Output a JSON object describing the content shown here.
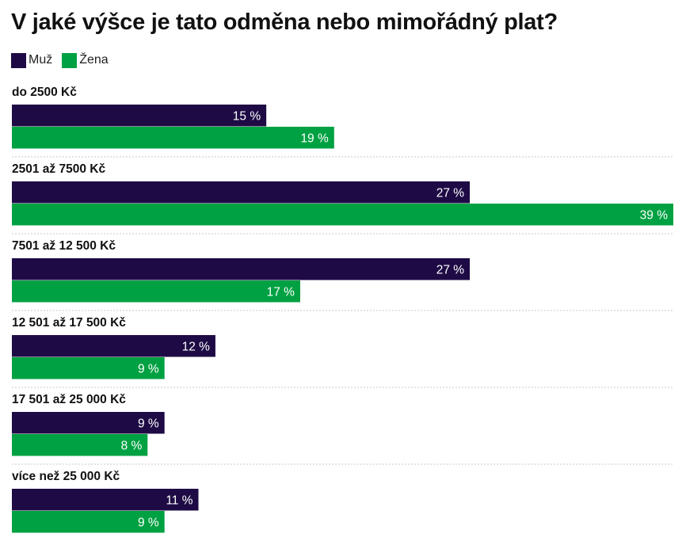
{
  "chart_data": {
    "type": "bar",
    "orientation": "horizontal",
    "title": "V jaké výšce je tato odměna nebo mimořádný plat?",
    "categories": [
      "do 2500 Kč",
      "2501 až 7500 Kč",
      "7501 až 12 500 Kč",
      "12 501 až 17 500 Kč",
      "17 501 až 25 000 Kč",
      "více než 25 000 Kč"
    ],
    "series": [
      {
        "name": "Muž",
        "color": "#1e0b45",
        "values": [
          15,
          27,
          27,
          12,
          9,
          11
        ]
      },
      {
        "name": "Žena",
        "color": "#00a142",
        "values": [
          19,
          39,
          17,
          9,
          8,
          9
        ]
      }
    ],
    "value_suffix": " %",
    "xlim": [
      0,
      39
    ],
    "legend_position": "top-left",
    "grid": false
  }
}
